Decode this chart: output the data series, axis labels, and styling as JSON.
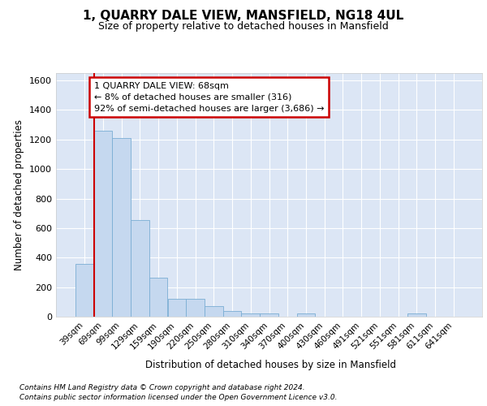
{
  "title": "1, QUARRY DALE VIEW, MANSFIELD, NG18 4UL",
  "subtitle": "Size of property relative to detached houses in Mansfield",
  "xlabel": "Distribution of detached houses by size in Mansfield",
  "ylabel": "Number of detached properties",
  "footnote1": "Contains HM Land Registry data © Crown copyright and database right 2024.",
  "footnote2": "Contains public sector information licensed under the Open Government Licence v3.0.",
  "categories": [
    "39sqm",
    "69sqm",
    "99sqm",
    "129sqm",
    "159sqm",
    "190sqm",
    "220sqm",
    "250sqm",
    "280sqm",
    "310sqm",
    "340sqm",
    "370sqm",
    "400sqm",
    "430sqm",
    "460sqm",
    "491sqm",
    "521sqm",
    "551sqm",
    "581sqm",
    "611sqm",
    "641sqm"
  ],
  "values": [
    360,
    1260,
    1210,
    655,
    265,
    120,
    120,
    70,
    38,
    20,
    20,
    0,
    20,
    0,
    0,
    0,
    0,
    0,
    20,
    0,
    0
  ],
  "bar_color": "#c5d8ef",
  "bar_edge_color": "#7aadd4",
  "background_color": "#dce6f5",
  "grid_color": "#ffffff",
  "vline_color": "#cc0000",
  "vline_x": 0.5,
  "annotation_text": "1 QUARRY DALE VIEW: 68sqm\n← 8% of detached houses are smaller (316)\n92% of semi-detached houses are larger (3,686) →",
  "annotation_box_edgecolor": "#cc0000",
  "ylim": [
    0,
    1650
  ],
  "yticks": [
    0,
    200,
    400,
    600,
    800,
    1000,
    1200,
    1400,
    1600
  ]
}
